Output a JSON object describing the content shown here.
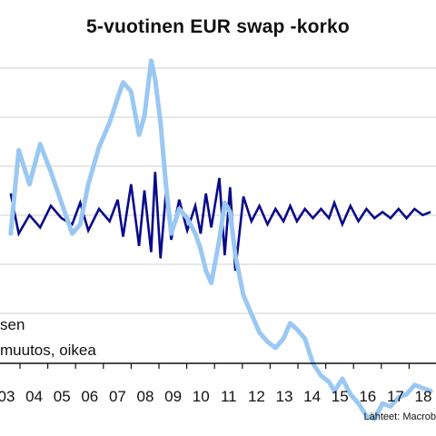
{
  "title": "5-vuotinen EUR swap -korko",
  "legend": [
    "sen",
    "muutos, oikea"
  ],
  "source": "Lähteet: Macrob",
  "colors": {
    "level": "#9ac8f3",
    "change": "#0a0a8a",
    "grid": "#cfcfcf",
    "axis": "#111111"
  },
  "chart_data": {
    "type": "line",
    "categories": [
      "03",
      "04",
      "05",
      "06",
      "07",
      "08",
      "09",
      "10",
      "11",
      "12",
      "13",
      "14",
      "15",
      "16",
      "17",
      "18"
    ],
    "grid": true,
    "series": [
      {
        "role": "level",
        "values": [
          [
            2003.0,
            0.42
          ],
          [
            2003.3,
            0.69
          ],
          [
            2003.7,
            0.58
          ],
          [
            2004.1,
            0.71
          ],
          [
            2004.5,
            0.62
          ],
          [
            2004.9,
            0.52
          ],
          [
            2005.3,
            0.42
          ],
          [
            2005.6,
            0.45
          ],
          [
            2005.9,
            0.58
          ],
          [
            2006.3,
            0.7
          ],
          [
            2006.7,
            0.78
          ],
          [
            2007.0,
            0.86
          ],
          [
            2007.2,
            0.91
          ],
          [
            2007.5,
            0.88
          ],
          [
            2007.8,
            0.74
          ],
          [
            2008.0,
            0.8
          ],
          [
            2008.25,
            0.98
          ],
          [
            2008.4,
            0.92
          ],
          [
            2008.6,
            0.78
          ],
          [
            2008.8,
            0.58
          ],
          [
            2009.0,
            0.42
          ],
          [
            2009.3,
            0.5
          ],
          [
            2009.6,
            0.47
          ],
          [
            2009.9,
            0.42
          ],
          [
            2010.1,
            0.37
          ],
          [
            2010.3,
            0.3
          ],
          [
            2010.5,
            0.26
          ],
          [
            2010.8,
            0.4
          ],
          [
            2011.0,
            0.52
          ],
          [
            2011.2,
            0.49
          ],
          [
            2011.4,
            0.35
          ],
          [
            2011.7,
            0.22
          ],
          [
            2012.0,
            0.16
          ],
          [
            2012.3,
            0.1
          ],
          [
            2012.6,
            0.07
          ],
          [
            2012.9,
            0.05
          ],
          [
            2013.2,
            0.08
          ],
          [
            2013.45,
            0.13
          ],
          [
            2013.7,
            0.11
          ],
          [
            2014.0,
            0.08
          ],
          [
            2014.3,
            0.0
          ],
          [
            2014.6,
            -0.04
          ],
          [
            2014.9,
            -0.06
          ],
          [
            2015.1,
            -0.09
          ],
          [
            2015.4,
            -0.05
          ],
          [
            2015.7,
            -0.1
          ],
          [
            2016.0,
            -0.13
          ],
          [
            2016.3,
            -0.17
          ],
          [
            2016.6,
            -0.18
          ],
          [
            2016.9,
            -0.13
          ],
          [
            2017.2,
            -0.14
          ],
          [
            2017.5,
            -0.11
          ],
          [
            2017.8,
            -0.1
          ],
          [
            2018.1,
            -0.07
          ],
          [
            2018.4,
            -0.08
          ],
          [
            2018.7,
            -0.09
          ]
        ]
      },
      {
        "role": "change",
        "values": [
          [
            2003.0,
            0.55
          ],
          [
            2003.3,
            0.42
          ],
          [
            2003.7,
            0.48
          ],
          [
            2004.1,
            0.44
          ],
          [
            2004.5,
            0.51
          ],
          [
            2004.9,
            0.47
          ],
          [
            2005.3,
            0.45
          ],
          [
            2005.6,
            0.52
          ],
          [
            2005.9,
            0.43
          ],
          [
            2006.3,
            0.5
          ],
          [
            2006.7,
            0.46
          ],
          [
            2007.0,
            0.53
          ],
          [
            2007.2,
            0.41
          ],
          [
            2007.5,
            0.58
          ],
          [
            2007.8,
            0.38
          ],
          [
            2008.0,
            0.56
          ],
          [
            2008.25,
            0.36
          ],
          [
            2008.4,
            0.62
          ],
          [
            2008.6,
            0.34
          ],
          [
            2008.8,
            0.55
          ],
          [
            2009.0,
            0.4
          ],
          [
            2009.3,
            0.53
          ],
          [
            2009.6,
            0.43
          ],
          [
            2009.9,
            0.51
          ],
          [
            2010.1,
            0.42
          ],
          [
            2010.3,
            0.55
          ],
          [
            2010.5,
            0.44
          ],
          [
            2010.8,
            0.6
          ],
          [
            2011.0,
            0.35
          ],
          [
            2011.2,
            0.57
          ],
          [
            2011.4,
            0.3
          ],
          [
            2011.7,
            0.54
          ],
          [
            2012.0,
            0.46
          ],
          [
            2012.3,
            0.51
          ],
          [
            2012.6,
            0.45
          ],
          [
            2012.9,
            0.5
          ],
          [
            2013.2,
            0.46
          ],
          [
            2013.45,
            0.51
          ],
          [
            2013.7,
            0.46
          ],
          [
            2014.0,
            0.5
          ],
          [
            2014.3,
            0.47
          ],
          [
            2014.6,
            0.5
          ],
          [
            2014.9,
            0.47
          ],
          [
            2015.1,
            0.52
          ],
          [
            2015.4,
            0.45
          ],
          [
            2015.7,
            0.51
          ],
          [
            2016.0,
            0.46
          ],
          [
            2016.3,
            0.5
          ],
          [
            2016.6,
            0.47
          ],
          [
            2016.9,
            0.49
          ],
          [
            2017.2,
            0.47
          ],
          [
            2017.5,
            0.5
          ],
          [
            2017.8,
            0.47
          ],
          [
            2018.1,
            0.5
          ],
          [
            2018.4,
            0.48
          ],
          [
            2018.7,
            0.49
          ]
        ]
      }
    ]
  }
}
